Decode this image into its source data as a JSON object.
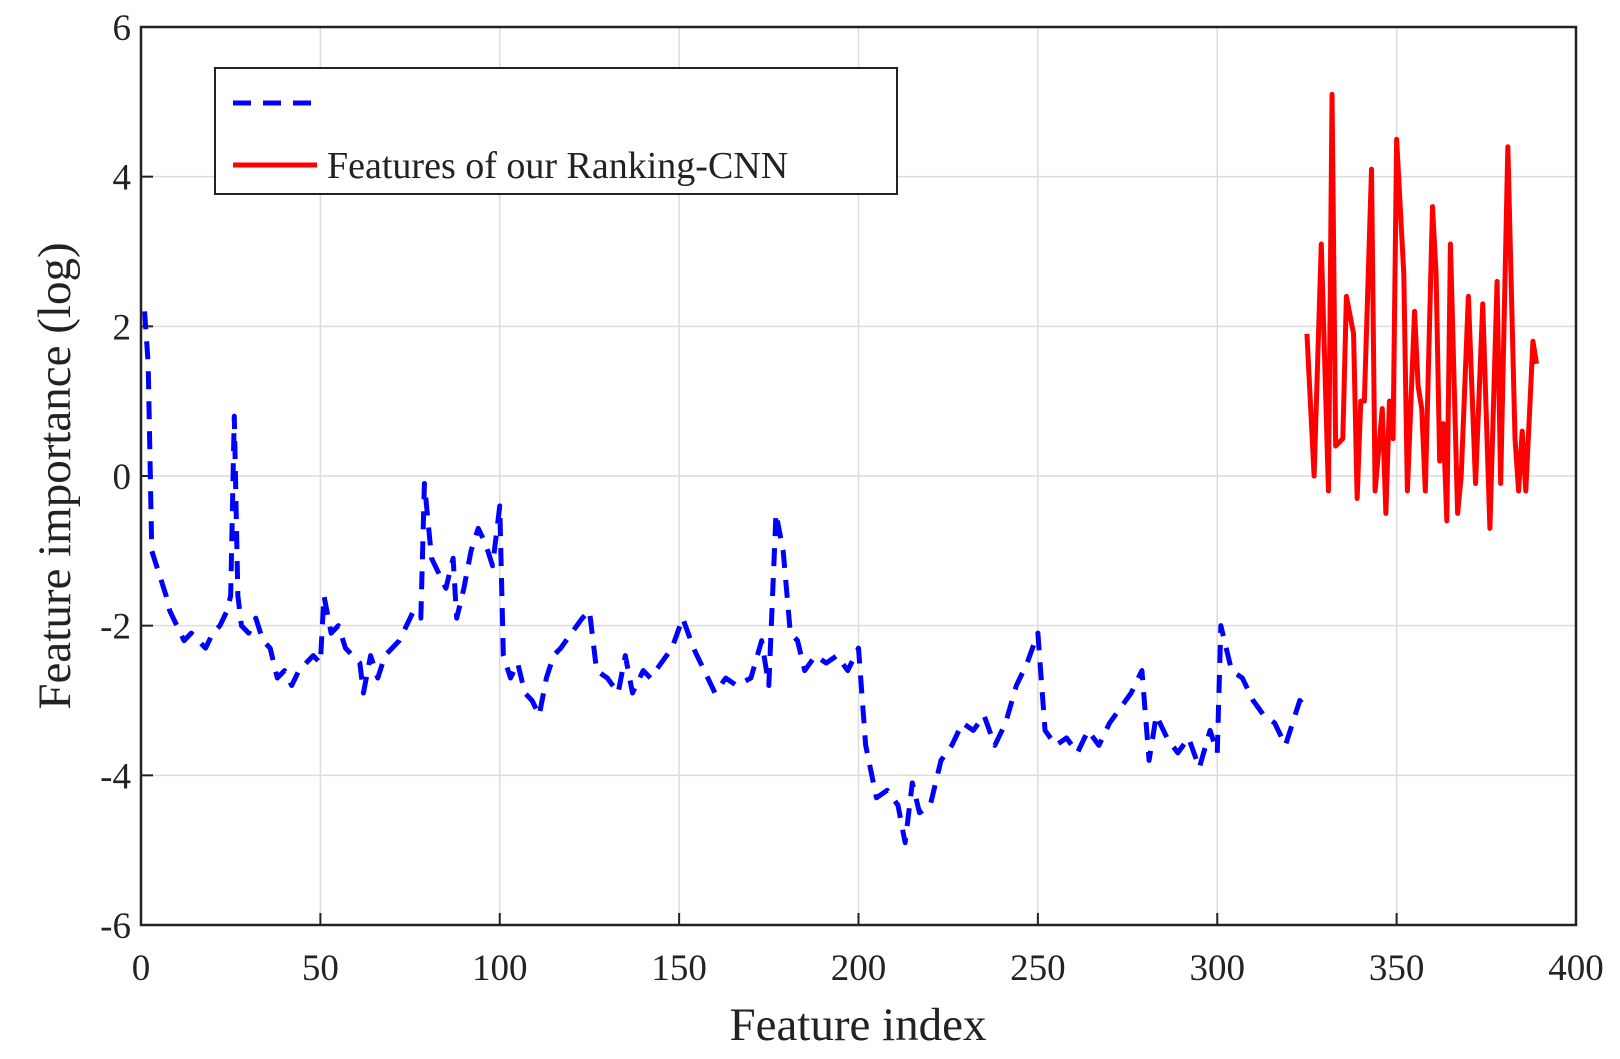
{
  "chart_data": {
    "type": "line",
    "xlabel": "Feature index",
    "ylabel": "Feature importance (log)",
    "xlim": [
      0,
      400
    ],
    "xticks": [
      0,
      50,
      100,
      150,
      200,
      250,
      300,
      350,
      400
    ],
    "ylim": [
      -6,
      6
    ],
    "yticks": [
      -6,
      -4,
      -2,
      0,
      2,
      4,
      6
    ],
    "grid": true,
    "legend": "upper left",
    "series": [
      {
        "color": "#0000ff",
        "dash": true,
        "x": [
          1,
          2,
          3,
          5,
          7,
          8,
          10,
          12,
          14,
          16,
          18,
          20,
          22,
          24,
          25,
          26,
          27,
          28,
          30,
          32,
          34,
          36,
          38,
          40,
          42,
          44,
          46,
          48,
          50,
          51,
          53,
          55,
          57,
          59,
          61,
          62,
          64,
          66,
          68,
          70,
          72,
          74,
          76,
          78,
          79,
          81,
          83,
          85,
          87,
          88,
          90,
          92,
          94,
          96,
          98,
          100,
          101,
          103,
          105,
          107,
          109,
          111,
          113,
          115,
          117,
          120,
          123,
          125,
          127,
          130,
          133,
          135,
          137,
          140,
          142,
          145,
          148,
          151,
          154,
          157,
          160,
          163,
          166,
          170,
          173,
          175,
          177,
          179,
          181,
          183,
          185,
          188,
          191,
          194,
          197,
          200,
          202,
          205,
          208,
          211,
          213,
          215,
          217,
          220,
          223,
          226,
          229,
          232,
          235,
          238,
          241,
          244,
          247,
          250,
          252,
          255,
          258,
          261,
          264,
          267,
          270,
          273,
          276,
          279,
          281,
          283,
          286,
          289,
          292,
          295,
          298,
          300,
          301,
          304,
          307,
          310,
          313,
          316,
          319,
          321,
          323,
          325
        ],
        "values": [
          2.2,
          1.5,
          -1.0,
          -1.3,
          -1.6,
          -1.8,
          -2.0,
          -2.2,
          -2.1,
          -2.2,
          -2.3,
          -2.1,
          -2.0,
          -1.8,
          -1.6,
          0.8,
          -1.6,
          -2.0,
          -2.1,
          -1.9,
          -2.2,
          -2.3,
          -2.7,
          -2.6,
          -2.8,
          -2.6,
          -2.5,
          -2.4,
          -2.5,
          -1.6,
          -2.1,
          -2.0,
          -2.3,
          -2.4,
          -2.5,
          -2.9,
          -2.4,
          -2.7,
          -2.4,
          -2.3,
          -2.2,
          -2.0,
          -1.8,
          -1.9,
          -0.1,
          -1.1,
          -1.3,
          -1.5,
          -1.1,
          -1.9,
          -1.5,
          -1.0,
          -0.7,
          -0.9,
          -1.2,
          -0.4,
          -2.4,
          -2.7,
          -2.5,
          -2.9,
          -3.0,
          -3.2,
          -2.7,
          -2.4,
          -2.3,
          -2.1,
          -1.9,
          -1.8,
          -2.6,
          -2.7,
          -2.9,
          -2.4,
          -2.9,
          -2.6,
          -2.7,
          -2.5,
          -2.3,
          -1.9,
          -2.3,
          -2.6,
          -2.9,
          -2.7,
          -2.8,
          -2.7,
          -2.2,
          -2.8,
          -0.5,
          -1.0,
          -2.1,
          -2.2,
          -2.6,
          -2.4,
          -2.5,
          -2.4,
          -2.6,
          -2.3,
          -3.6,
          -4.3,
          -4.2,
          -4.4,
          -4.9,
          -4.1,
          -4.5,
          -4.4,
          -3.8,
          -3.6,
          -3.3,
          -3.4,
          -3.2,
          -3.6,
          -3.3,
          -2.8,
          -2.5,
          -2.1,
          -3.4,
          -3.6,
          -3.5,
          -3.7,
          -3.4,
          -3.6,
          -3.3,
          -3.1,
          -2.9,
          -2.6,
          -3.8,
          -3.2,
          -3.5,
          -3.7,
          -3.5,
          -3.9,
          -3.4,
          -3.7,
          -2.0,
          -2.6,
          -2.7,
          -3.0,
          -3.2,
          -3.3,
          -3.6,
          -3.3,
          -3.0,
          -3.1
        ]
      },
      {
        "name": "Features of our Ranking-CNN",
        "color": "#ff0000",
        "dash": false,
        "x": [
          325,
          327,
          329,
          331,
          332,
          333,
          335,
          336,
          338,
          339,
          340,
          341,
          343,
          344,
          346,
          347,
          348,
          349,
          350,
          352,
          353,
          355,
          356,
          357,
          358,
          360,
          361,
          362,
          363,
          364,
          365,
          367,
          368,
          370,
          372,
          374,
          376,
          378,
          379,
          381,
          383,
          384,
          385,
          386,
          388,
          389
        ],
        "values": [
          1.9,
          0.0,
          3.1,
          -0.2,
          5.1,
          0.4,
          0.5,
          2.4,
          1.9,
          -0.3,
          1.0,
          1.0,
          4.1,
          -0.2,
          0.9,
          -0.5,
          1.0,
          0.5,
          4.5,
          2.7,
          -0.2,
          2.2,
          1.2,
          0.9,
          -0.2,
          3.6,
          2.7,
          0.2,
          0.7,
          -0.6,
          3.1,
          -0.5,
          0.0,
          2.4,
          -0.1,
          2.3,
          -0.7,
          2.6,
          -0.1,
          4.4,
          0.5,
          -0.2,
          0.6,
          -0.2,
          1.8,
          1.5
        ]
      }
    ]
  }
}
